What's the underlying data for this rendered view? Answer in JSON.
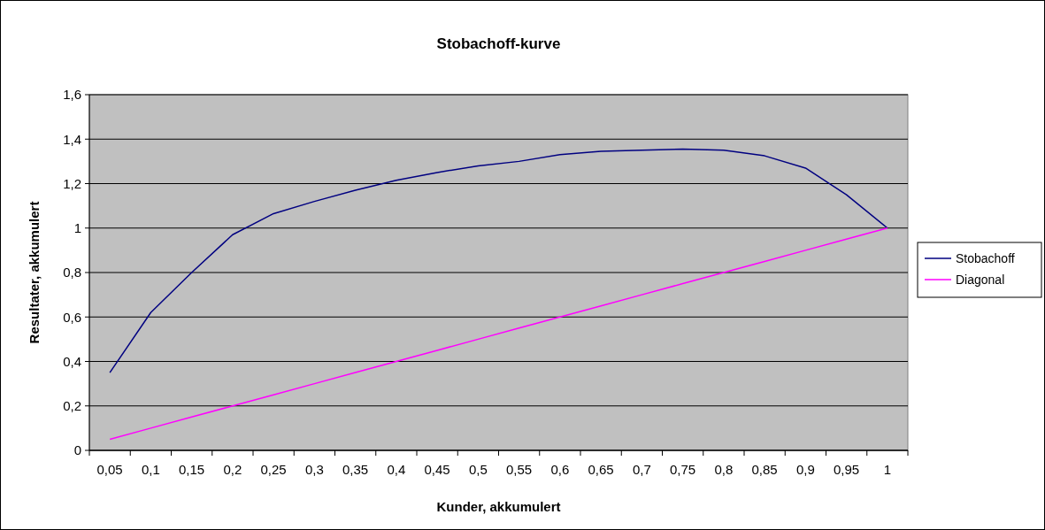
{
  "chart_data": {
    "type": "line",
    "title": "Stobachoff-kurve",
    "xlabel": "Kunder, akkumulert",
    "ylabel": "Resultater, akkumulert",
    "categories": [
      "0,05",
      "0,1",
      "0,15",
      "0,2",
      "0,25",
      "0,3",
      "0,35",
      "0,4",
      "0,45",
      "0,5",
      "0,55",
      "0,6",
      "0,65",
      "0,7",
      "0,75",
      "0,8",
      "0,85",
      "0,9",
      "0,95",
      "1"
    ],
    "series": [
      {
        "name": "Stobachoff",
        "color": "#000080",
        "values": [
          0.35,
          0.62,
          0.8,
          0.97,
          1.065,
          1.12,
          1.17,
          1.215,
          1.25,
          1.28,
          1.3,
          1.33,
          1.345,
          1.35,
          1.355,
          1.35,
          1.325,
          1.27,
          1.15,
          1.0
        ]
      },
      {
        "name": "Diagonal",
        "color": "#ff00ff",
        "values": [
          0.05,
          0.1,
          0.15,
          0.2,
          0.25,
          0.3,
          0.35,
          0.4,
          0.45,
          0.5,
          0.55,
          0.6,
          0.65,
          0.7,
          0.75,
          0.8,
          0.85,
          0.9,
          0.95,
          1.0
        ]
      }
    ],
    "ylim": [
      0,
      1.6
    ],
    "yticks": [
      0,
      {
        "value": 0.2,
        "label": "0,2"
      },
      {
        "value": 0.4,
        "label": "0,4"
      },
      {
        "value": 0.6,
        "label": "0,6"
      },
      {
        "value": 0.8,
        "label": "0,8"
      },
      1,
      {
        "value": 1.2,
        "label": "1,2"
      },
      {
        "value": 1.4,
        "label": "1,4"
      },
      {
        "value": 1.6,
        "label": "1,6"
      }
    ],
    "grid": "y",
    "legend": "right",
    "marker": "none",
    "line_style": "solid"
  }
}
